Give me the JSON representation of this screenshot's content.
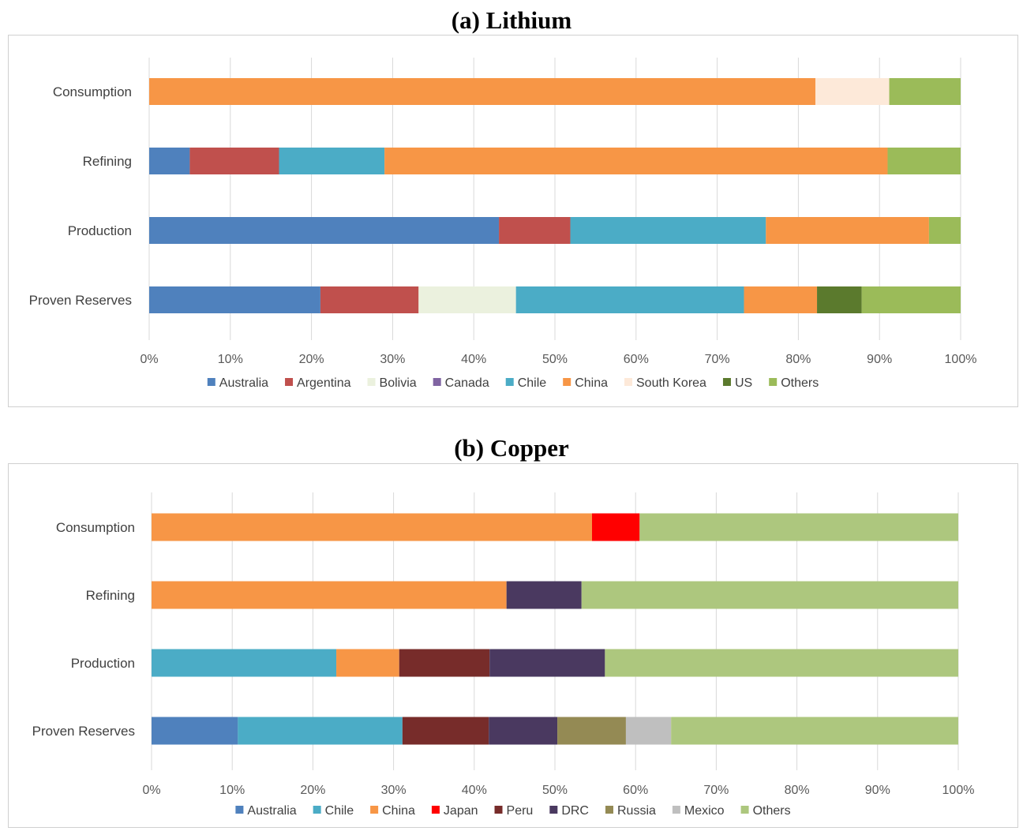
{
  "chart_data": [
    {
      "type": "bar",
      "orientation": "horizontal",
      "stacked": "100%",
      "title": "(a) Lithium",
      "categories": [
        "Consumption",
        "Refining",
        "Production",
        "Proven Reserves"
      ],
      "x_ticks": [
        "0%",
        "10%",
        "20%",
        "30%",
        "40%",
        "50%",
        "60%",
        "70%",
        "80%",
        "90%",
        "100%"
      ],
      "xlim": [
        0,
        100
      ],
      "grid": "vertical",
      "legend_position": "bottom",
      "series": [
        {
          "name": "Australia",
          "color": "#4F81BD",
          "values": [
            0,
            5,
            43.1,
            21.1
          ]
        },
        {
          "name": "Argentina",
          "color": "#C0504D",
          "values": [
            0,
            11,
            8.8,
            12.1
          ]
        },
        {
          "name": "Bolivia",
          "color": "#EBF1DE",
          "values": [
            0,
            0,
            0,
            12
          ]
        },
        {
          "name": "Canada",
          "color": "#8064A2",
          "values": [
            0,
            0,
            0,
            0
          ]
        },
        {
          "name": "Chile",
          "color": "#4BACC6",
          "values": [
            0,
            13,
            24.1,
            28.1
          ]
        },
        {
          "name": "China",
          "color": "#F79646",
          "values": [
            82.1,
            62,
            20.1,
            9
          ]
        },
        {
          "name": "South Korea",
          "color": "#FDE9D9",
          "values": [
            9.1,
            0,
            0,
            0
          ]
        },
        {
          "name": "US",
          "color": "#5B7A2D",
          "values": [
            0,
            0,
            0,
            5.5
          ]
        },
        {
          "name": "Others",
          "color": "#9BBB59",
          "values": [
            8.8,
            9,
            3.9,
            12.2
          ]
        }
      ]
    },
    {
      "type": "bar",
      "orientation": "horizontal",
      "stacked": "100%",
      "title": "(b) Copper",
      "categories": [
        "Consumption",
        "Refining",
        "Production",
        "Proven Reserves"
      ],
      "x_ticks": [
        "0%",
        "10%",
        "20%",
        "30%",
        "40%",
        "50%",
        "60%",
        "70%",
        "80%",
        "90%",
        "100%"
      ],
      "xlim": [
        0,
        100
      ],
      "grid": "vertical",
      "legend_position": "bottom",
      "series": [
        {
          "name": "Australia",
          "color": "#4F81BD",
          "values": [
            0,
            0,
            0,
            10.7
          ]
        },
        {
          "name": "Chile",
          "color": "#4BACC6",
          "values": [
            0,
            0,
            22.9,
            20.4
          ]
        },
        {
          "name": "China",
          "color": "#F79646",
          "values": [
            54.6,
            44,
            7.8,
            0
          ]
        },
        {
          "name": "Japan",
          "color": "#FF0000",
          "values": [
            5.9,
            0,
            0,
            0
          ]
        },
        {
          "name": "Peru",
          "color": "#772C2A",
          "values": [
            0,
            0,
            11.2,
            10.7
          ]
        },
        {
          "name": "DRC",
          "color": "#4A3960",
          "values": [
            0,
            9.3,
            14.3,
            8.5
          ]
        },
        {
          "name": "Russia",
          "color": "#948A54",
          "values": [
            0,
            0,
            0,
            8.5
          ]
        },
        {
          "name": "Mexico",
          "color": "#BFBFBF",
          "values": [
            0,
            0,
            0,
            5.6
          ]
        },
        {
          "name": "Others",
          "color": "#ADC77E",
          "values": [
            39.5,
            46.7,
            43.8,
            35.6
          ]
        }
      ]
    }
  ]
}
